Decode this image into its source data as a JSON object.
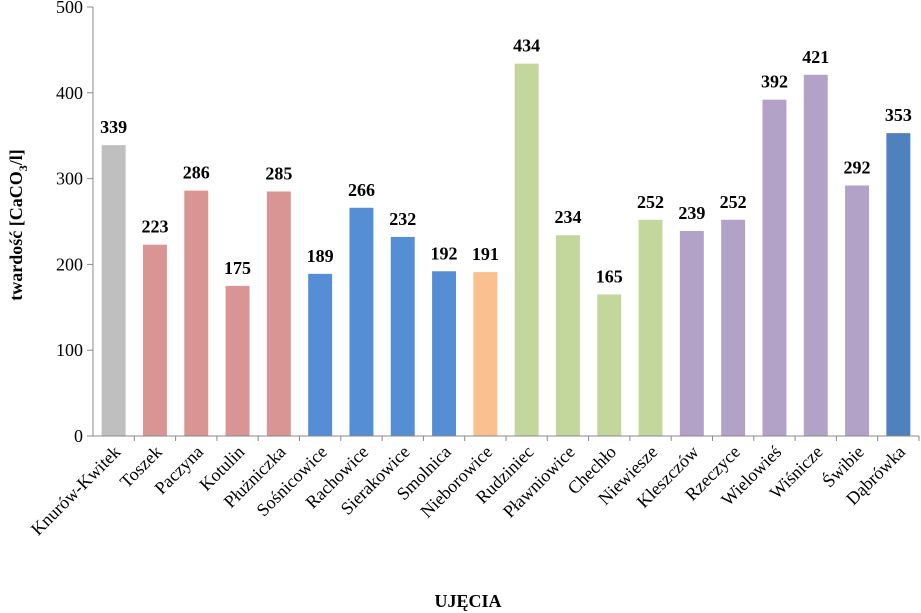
{
  "chart_data": {
    "type": "bar",
    "xlabel": "UJĘCIA",
    "ylabel": {
      "main": "twardość [CaCO",
      "sub": "3",
      "end": "/l]"
    },
    "ylim": [
      0,
      500
    ],
    "yticks": [
      0,
      100,
      200,
      300,
      400,
      500
    ],
    "grid": false,
    "legend": "none",
    "categories": [
      "Knurów-Kwitek",
      "Toszek",
      "Paczyna",
      "Kotulin",
      "Płużniczka",
      "Sośnicowice",
      "Rachowice",
      "Sierakowice",
      "Smolnica",
      "Nieborowice",
      "Rudziniec",
      "Pławniowice",
      "Chechło",
      "Niewiesze",
      "Kleszczów",
      "Rzeczyce",
      "Wielowieś",
      "Wiśnicze",
      "Świbie",
      "Dąbrówka"
    ],
    "values": [
      339,
      223,
      286,
      175,
      285,
      189,
      266,
      232,
      192,
      191,
      434,
      234,
      165,
      252,
      239,
      252,
      392,
      421,
      292,
      353
    ],
    "colors": [
      "#bfbfbf",
      "#d99594",
      "#d99594",
      "#d99594",
      "#d99594",
      "#558ed5",
      "#558ed5",
      "#558ed5",
      "#558ed5",
      "#fac090",
      "#c3d69b",
      "#c3d69b",
      "#c3d69b",
      "#c3d69b",
      "#b3a2c7",
      "#b3a2c7",
      "#b3a2c7",
      "#b3a2c7",
      "#b3a2c7",
      "#4f81bd"
    ]
  }
}
